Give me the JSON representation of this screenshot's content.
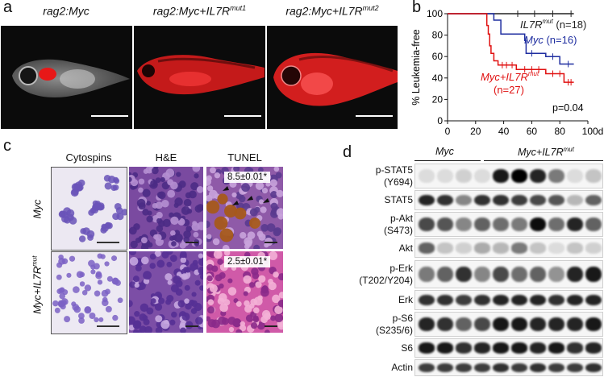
{
  "panel_labels": {
    "a": "a",
    "b": "b",
    "c": "c",
    "d": "d"
  },
  "panel_a": {
    "titles": [
      {
        "base": "rag2:Myc",
        "sup": ""
      },
      {
        "base": "rag2:Myc+IL7R",
        "sup": "mut1"
      },
      {
        "base": "rag2:Myc+IL7R",
        "sup": "mut2"
      }
    ]
  },
  "colors": {
    "myc": "#1f2ea0",
    "myc_il7r": "#e01010",
    "il7r": "#222222",
    "he_purple": "#8a4fa3",
    "tunel_brown": "#a65a1b"
  },
  "chart_data": {
    "type": "line",
    "subtype": "kaplan-meier",
    "ylabel": "% Leukemia-free",
    "xlabel": "",
    "x_ticks": [
      "0",
      "20",
      "40",
      "60",
      "80",
      "100d"
    ],
    "y_ticks": [
      "0",
      "20",
      "40",
      "60",
      "80",
      "100"
    ],
    "xlim": [
      0,
      100
    ],
    "ylim": [
      0,
      100
    ],
    "annotation": "p=0.04",
    "series": [
      {
        "name": "IL7R",
        "name_sup": "mut",
        "n": "(n=18)",
        "steps": [
          [
            0,
            100
          ],
          [
            90,
            100
          ]
        ],
        "censored": [
          [
            50,
            100
          ],
          [
            62,
            100
          ],
          [
            75,
            100
          ],
          [
            88,
            100
          ]
        ]
      },
      {
        "name": "Myc",
        "name_sup": "",
        "n": "(n=16)",
        "steps": [
          [
            0,
            100
          ],
          [
            33,
            100
          ],
          [
            33,
            94
          ],
          [
            38,
            94
          ],
          [
            38,
            81
          ],
          [
            55,
            81
          ],
          [
            55,
            75
          ],
          [
            56,
            75
          ],
          [
            56,
            63
          ],
          [
            70,
            63
          ],
          [
            70,
            60
          ],
          [
            80,
            60
          ],
          [
            80,
            53
          ],
          [
            90,
            53
          ]
        ],
        "censored": [
          [
            60,
            63
          ],
          [
            75,
            60
          ],
          [
            86,
            53
          ]
        ]
      },
      {
        "name": "Myc+IL7R",
        "name_sup": "mut",
        "n": "(n=27)",
        "steps": [
          [
            0,
            100
          ],
          [
            28,
            100
          ],
          [
            28,
            89
          ],
          [
            29,
            89
          ],
          [
            29,
            81
          ],
          [
            30,
            81
          ],
          [
            30,
            70
          ],
          [
            31,
            70
          ],
          [
            31,
            63
          ],
          [
            33,
            63
          ],
          [
            33,
            56
          ],
          [
            36,
            56
          ],
          [
            36,
            52
          ],
          [
            49,
            52
          ],
          [
            49,
            48
          ],
          [
            70,
            48
          ],
          [
            70,
            44
          ],
          [
            83,
            44
          ],
          [
            83,
            36
          ],
          [
            90,
            36
          ]
        ],
        "censored": [
          [
            39,
            52
          ],
          [
            42,
            52
          ],
          [
            46,
            52
          ],
          [
            55,
            48
          ],
          [
            60,
            48
          ],
          [
            65,
            48
          ],
          [
            75,
            44
          ],
          [
            80,
            44
          ],
          [
            86,
            36
          ],
          [
            88,
            36
          ]
        ]
      }
    ]
  },
  "panel_c": {
    "headers": [
      "Cytospins",
      "H&E",
      "TUNEL"
    ],
    "row1_label": "Myc",
    "row2_label": {
      "base": "Myc+IL7R",
      "sup": "mut"
    },
    "tunel_values": [
      "8.5±0.01*",
      "2.5±0.01*"
    ]
  },
  "panel_d": {
    "group1": {
      "base": "Myc",
      "sup": ""
    },
    "group2": {
      "base": "Myc+IL7R",
      "sup": "mut"
    },
    "blots": [
      {
        "l1": "p-STAT5",
        "l2": "(Y694)",
        "bands": [
          0.1,
          0.1,
          0.15,
          0.1,
          0.9,
          1.0,
          0.85,
          0.5,
          0.1,
          0.2
        ]
      },
      {
        "l1": "STAT5",
        "l2": "",
        "bands": [
          0.85,
          0.8,
          0.45,
          0.8,
          0.8,
          0.75,
          0.7,
          0.65,
          0.25,
          0.6
        ]
      },
      {
        "l1": "p-Akt",
        "l2": "(S473)",
        "bands": [
          0.7,
          0.65,
          0.45,
          0.6,
          0.55,
          0.5,
          0.95,
          0.55,
          0.85,
          0.6
        ]
      },
      {
        "l1": "Akt",
        "l2": "",
        "bands": [
          0.6,
          0.2,
          0.15,
          0.3,
          0.25,
          0.5,
          0.2,
          0.1,
          0.2,
          0.15
        ]
      },
      {
        "l1": "p-Erk",
        "l2": "(T202/Y204)",
        "bands": [
          0.5,
          0.6,
          0.8,
          0.45,
          0.7,
          0.55,
          0.6,
          0.4,
          0.85,
          0.9
        ]
      },
      {
        "l1": "Erk",
        "l2": "",
        "bands": [
          0.8,
          0.8,
          0.75,
          0.8,
          0.85,
          0.85,
          0.85,
          0.8,
          0.85,
          0.85
        ]
      },
      {
        "l1": "p-S6",
        "l2": "(S235/6)",
        "bands": [
          0.85,
          0.8,
          0.6,
          0.7,
          0.9,
          0.9,
          0.85,
          0.85,
          0.85,
          0.9
        ]
      },
      {
        "l1": "S6",
        "l2": "",
        "bands": [
          0.9,
          0.9,
          0.8,
          0.85,
          0.9,
          0.9,
          0.85,
          0.9,
          0.8,
          0.85
        ]
      },
      {
        "l1": "Actin",
        "l2": "",
        "bands": [
          0.75,
          0.75,
          0.75,
          0.75,
          0.8,
          0.75,
          0.8,
          0.75,
          0.75,
          0.8
        ]
      }
    ]
  }
}
